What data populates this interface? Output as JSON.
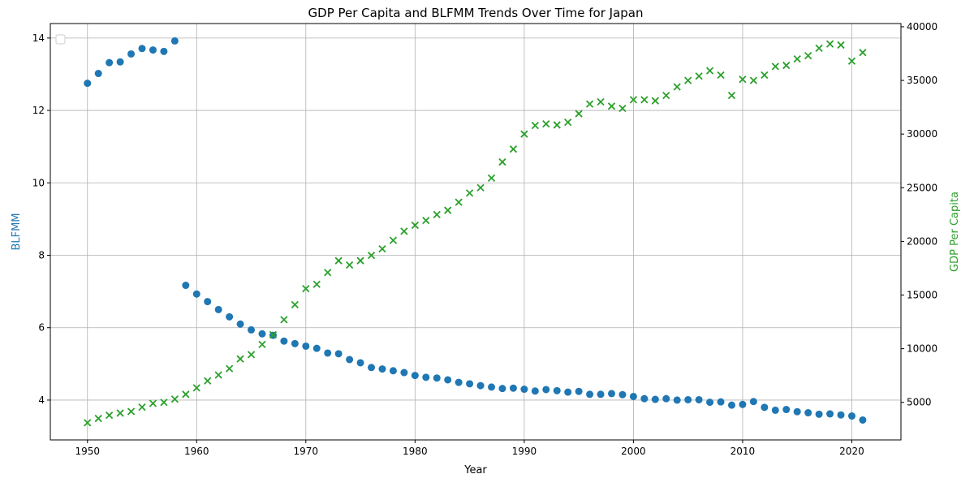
{
  "chart_data": {
    "type": "scatter",
    "title": "GDP Per Capita and BLFMM Trends Over Time for Japan",
    "xlabel": "Year",
    "ylabel_left": "BLFMM",
    "ylabel_right": "GDP Per Capita",
    "xlim": [
      1946.6,
      2024.5
    ],
    "ylim_left": [
      2.9,
      14.4
    ],
    "ylim_right": [
      1500,
      40300
    ],
    "x_ticks": [
      1950,
      1960,
      1970,
      1980,
      1990,
      2000,
      2010,
      2020
    ],
    "y_ticks_left": [
      4,
      6,
      8,
      10,
      12,
      14
    ],
    "y_ticks_right": [
      5000,
      10000,
      15000,
      20000,
      25000,
      30000,
      35000,
      40000
    ],
    "grid": true,
    "legend": "top-left (empty)",
    "colors": {
      "blfmm": "#1f77b4",
      "gdp": "#2ca02c"
    },
    "x": [
      1950,
      1951,
      1952,
      1953,
      1954,
      1955,
      1956,
      1957,
      1958,
      1959,
      1960,
      1961,
      1962,
      1963,
      1964,
      1965,
      1966,
      1967,
      1968,
      1969,
      1970,
      1971,
      1972,
      1973,
      1974,
      1975,
      1976,
      1977,
      1978,
      1979,
      1980,
      1981,
      1982,
      1983,
      1984,
      1985,
      1986,
      1987,
      1988,
      1989,
      1990,
      1991,
      1992,
      1993,
      1994,
      1995,
      1996,
      1997,
      1998,
      1999,
      2000,
      2001,
      2002,
      2003,
      2004,
      2005,
      2006,
      2007,
      2008,
      2009,
      2010,
      2011,
      2012,
      2013,
      2014,
      2015,
      2016,
      2017,
      2018,
      2019,
      2020,
      2021
    ],
    "series": [
      {
        "key": "blfmm",
        "axis": "left",
        "marker": "circle",
        "values": [
          12.75,
          13.02,
          13.32,
          13.34,
          13.56,
          13.71,
          13.67,
          13.63,
          13.92,
          7.17,
          6.93,
          6.72,
          6.5,
          6.3,
          6.1,
          5.94,
          5.83,
          5.79,
          5.63,
          5.56,
          5.49,
          5.43,
          5.3,
          5.28,
          5.12,
          5.03,
          4.9,
          4.86,
          4.81,
          4.76,
          4.68,
          4.63,
          4.61,
          4.56,
          4.49,
          4.45,
          4.4,
          4.36,
          4.32,
          4.33,
          4.3,
          4.25,
          4.29,
          4.26,
          4.22,
          4.24,
          4.16,
          4.16,
          4.18,
          4.15,
          4.1,
          4.04,
          4.02,
          4.04,
          4.0,
          4.01,
          4.01,
          3.94,
          3.95,
          3.86,
          3.88,
          3.96,
          3.8,
          3.72,
          3.74,
          3.68,
          3.65,
          3.61,
          3.62,
          3.59,
          3.56,
          3.45
        ]
      },
      {
        "key": "gdp",
        "axis": "right",
        "marker": "x",
        "values": [
          3100,
          3500,
          3800,
          4000,
          4150,
          4550,
          4900,
          5000,
          5300,
          5750,
          6350,
          7000,
          7550,
          8150,
          9050,
          9450,
          10400,
          11300,
          12700,
          14100,
          15600,
          16000,
          17100,
          18200,
          17800,
          18200,
          18700,
          19300,
          20100,
          20950,
          21500,
          21950,
          22500,
          22900,
          23650,
          24500,
          25000,
          25900,
          27400,
          28600,
          30000,
          30800,
          30950,
          30850,
          31100,
          31900,
          32800,
          33000,
          32600,
          32400,
          33200,
          33200,
          33100,
          33600,
          34400,
          35000,
          35400,
          35900,
          35500,
          33600,
          35100,
          35000,
          35500,
          36300,
          36400,
          37000,
          37300,
          38000,
          38400,
          38300,
          36800,
          37600
        ]
      }
    ]
  }
}
